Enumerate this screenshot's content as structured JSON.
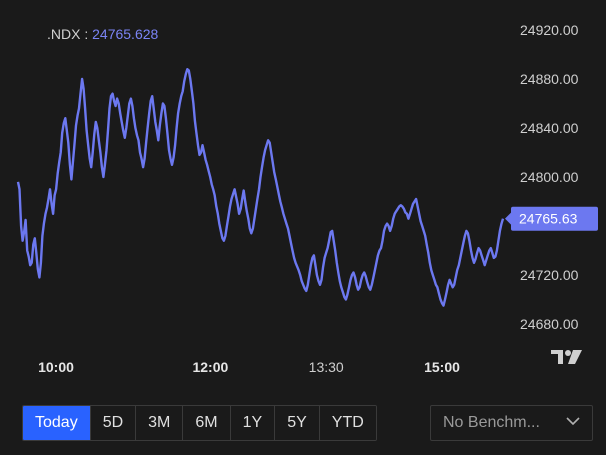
{
  "legend": {
    "symbol": ".NDX",
    "separator": " : ",
    "value": "24765.628"
  },
  "colors": {
    "line": "#6c78f0",
    "badge": "#6c78f0",
    "accent": "#2962ff"
  },
  "range_buttons": [
    {
      "label": "Today",
      "active": true
    },
    {
      "label": "5D",
      "active": false
    },
    {
      "label": "3M",
      "active": false
    },
    {
      "label": "6M",
      "active": false
    },
    {
      "label": "1Y",
      "active": false
    },
    {
      "label": "5Y",
      "active": false
    },
    {
      "label": "YTD",
      "active": false
    }
  ],
  "benchmark": {
    "label": "No Benchm...",
    "icon": "chevron-down-icon"
  },
  "logo": {
    "icon": "tradingview-logo-icon"
  },
  "chart_data": {
    "type": "line",
    "series": [
      {
        "name": ".NDX",
        "values": [
          24796,
          24790,
          24760,
          24748,
          24755,
          24765,
          24740,
          24735,
          24728,
          24730,
          24745,
          24750,
          24738,
          24725,
          24718,
          24730,
          24752,
          24762,
          24770,
          24775,
          24782,
          24790,
          24778,
          24770,
          24785,
          24790,
          24803,
          24812,
          24820,
          24836,
          24844,
          24848,
          24838,
          24828,
          24810,
          24798,
          24812,
          24826,
          24842,
          24850,
          24856,
          24868,
          24880,
          24872,
          24856,
          24838,
          24826,
          24815,
          24808,
          24820,
          24835,
          24845,
          24840,
          24830,
          24820,
          24808,
          24800,
          24810,
          24822,
          24838,
          24856,
          24866,
          24868,
          24862,
          24858,
          24864,
          24860,
          24852,
          24845,
          24838,
          24832,
          24840,
          24850,
          24860,
          24864,
          24858,
          24848,
          24840,
          24834,
          24830,
          24820,
          24815,
          24808,
          24815,
          24828,
          24840,
          24852,
          24862,
          24866,
          24856,
          24845,
          24838,
          24830,
          24842,
          24852,
          24860,
          24858,
          24848,
          24835,
          24822,
          24815,
          24810,
          24816,
          24826,
          24840,
          24852,
          24860,
          24866,
          24870,
          24878,
          24884,
          24888,
          24887,
          24880,
          24870,
          24860,
          24846,
          24836,
          24826,
          24818,
          24820,
          24826,
          24820,
          24814,
          24810,
          24805,
          24800,
          24794,
          24790,
          24785,
          24776,
          24770,
          24762,
          24756,
          24750,
          24748,
          24752,
          24760,
          24768,
          24776,
          24782,
          24786,
          24790,
          24784,
          24778,
          24770,
          24774,
          24782,
          24789,
          24780,
          24772,
          24766,
          24758,
          24754,
          24758,
          24766,
          24774,
          24782,
          24790,
          24800,
          24808,
          24816,
          24822,
          24826,
          24830,
          24828,
          24820,
          24812,
          24804,
          24798,
          24792,
          24786,
          24780,
          24775,
          24770,
          24766,
          24762,
          24758,
          24752,
          24746,
          24740,
          24734,
          24730,
          24727,
          24724,
          24720,
          24715,
          24712,
          24709,
          24707,
          24712,
          24720,
          24728,
          24734,
          24736,
          24728,
          24720,
          24715,
          24712,
          24716,
          24726,
          24734,
          24738,
          24742,
          24748,
          24755,
          24756,
          24748,
          24740,
          24730,
          24722,
          24715,
          24710,
          24706,
          24702,
          24700,
          24704,
          24710,
          24716,
          24720,
          24722,
          24718,
          24712,
          24708,
          24710,
          24716,
          24720,
          24722,
          24719,
          24714,
          24710,
          24708,
          24712,
          24718,
          24724,
          24730,
          24736,
          24740,
          24742,
          24748,
          24756,
          24760,
          24762,
          24760,
          24756,
          24760,
          24766,
          24770,
          24772,
          24774,
          24776,
          24777,
          24776,
          24774,
          24771,
          24770,
          24766,
          24770,
          24774,
          24778,
          24780,
          24782,
          24776,
          24770,
          24764,
          24760,
          24756,
          24752,
          24745,
          24738,
          24730,
          24724,
          24720,
          24716,
          24712,
          24710,
          24705,
          24700,
          24697,
          24695,
          24700,
          24706,
          24712,
          24716,
          24713,
          24710,
          24712,
          24718,
          24724,
          24728,
          24734,
          24740,
          24746,
          24752,
          24756,
          24754,
          24748,
          24740,
          24734,
          24730,
          24733,
          24738,
          24742,
          24740,
          24736,
          24732,
          24728,
          24732,
          24736,
          24740,
          24742,
          24738,
          24734,
          24735,
          24740,
          24748,
          24756,
          24762,
          24766
        ]
      }
    ],
    "last_value_label": "24765.63",
    "y_ticks": [
      "24920.00",
      "24880.00",
      "24840.00",
      "24800.00",
      "24720.00",
      "24680.00"
    ],
    "y_tick_values": [
      24920,
      24880,
      24840,
      24800,
      24720,
      24680
    ],
    "x_ticks": [
      {
        "label": "10:00",
        "major": true
      },
      {
        "label": "12:00",
        "major": true
      },
      {
        "label": "13:30",
        "major": false
      },
      {
        "label": "15:00",
        "major": true
      }
    ],
    "x_tick_minutes": [
      600,
      720,
      810,
      900
    ],
    "x_range_minutes": [
      570,
      960
    ],
    "ylim": [
      24666,
      24932
    ],
    "grid": false,
    "legend": "top-left"
  }
}
